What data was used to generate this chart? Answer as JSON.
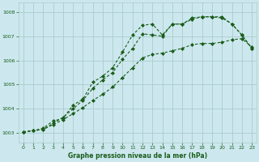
{
  "title": "Graphe pression niveau de la mer (hPa)",
  "bg_color": "#cce8ee",
  "grid_color": "#aacccc",
  "line_color": "#1a5c1a",
  "xlim": [
    -0.5,
    23.5
  ],
  "ylim": [
    1002.6,
    1008.4
  ],
  "yticks": [
    1003,
    1004,
    1005,
    1006,
    1007,
    1008
  ],
  "xticks": [
    0,
    1,
    2,
    3,
    4,
    5,
    6,
    7,
    8,
    9,
    10,
    11,
    12,
    13,
    14,
    15,
    16,
    17,
    18,
    19,
    20,
    21,
    22,
    23
  ],
  "series": [
    [
      1003.05,
      1003.1,
      1003.2,
      1003.5,
      1003.6,
      1004.15,
      1004.4,
      1005.1,
      1005.35,
      1005.7,
      1006.35,
      1007.05,
      1007.45,
      1007.5,
      1007.05,
      1007.5,
      1007.5,
      1007.75,
      1007.8,
      1007.8,
      1007.8,
      1007.5,
      1007.05,
      1006.5
    ],
    [
      1003.05,
      1003.1,
      1003.15,
      1003.4,
      1003.65,
      1004.0,
      1004.35,
      1004.85,
      1005.2,
      1005.5,
      1006.05,
      1006.5,
      1007.1,
      1007.05,
      1007.0,
      1007.5,
      1007.5,
      1007.7,
      1007.8,
      1007.8,
      1007.75,
      1007.5,
      1007.05,
      1006.5
    ],
    [
      1003.05,
      1003.1,
      1003.15,
      1003.35,
      1003.55,
      1003.8,
      1004.05,
      1004.35,
      1004.6,
      1004.9,
      1005.3,
      1005.7,
      1006.1,
      1006.25,
      1006.3,
      1006.4,
      1006.5,
      1006.65,
      1006.7,
      1006.7,
      1006.75,
      1006.85,
      1006.9,
      1006.55
    ]
  ]
}
